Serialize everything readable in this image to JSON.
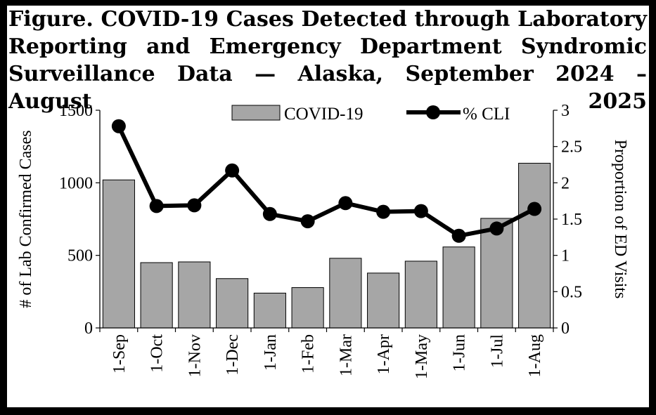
{
  "title_lines": [
    "Figure. COVID-19 Cases Detected through Laboratory",
    "Reporting and Emergency Department Syndromic",
    "Surveillance Data — Alaska, September 2024 – August 2025"
  ],
  "chart_data": {
    "type": "bar",
    "categories": [
      "1-Sep",
      "1-Oct",
      "1-Nov",
      "1-Dec",
      "1-Jan",
      "1-Feb",
      "1-Mar",
      "1-Apr",
      "1-May",
      "1-Jun",
      "1-Jul",
      "1-Aug"
    ],
    "series": [
      {
        "name": "COVID-19",
        "type": "bar",
        "axis": "left",
        "values": [
          1020,
          450,
          455,
          340,
          240,
          278,
          480,
          378,
          460,
          558,
          755,
          1135
        ]
      },
      {
        "name": "% CLI",
        "type": "line",
        "axis": "right",
        "values": [
          2.78,
          1.68,
          1.69,
          2.17,
          1.57,
          1.47,
          1.72,
          1.6,
          1.61,
          1.27,
          1.37,
          1.64
        ]
      }
    ],
    "ylabel": "# of Lab Confirmed Cases",
    "y2label": "Proportion of ED Visits",
    "ylim": [
      0,
      1500
    ],
    "y2lim": [
      0,
      3
    ],
    "yticks": [
      "0",
      "500",
      "1000",
      "1500"
    ],
    "y2ticks": [
      "0",
      "0.5",
      "1",
      "1.5",
      "2",
      "2.5",
      "3"
    ],
    "legend_position": "top",
    "grid": false,
    "colors": {
      "bar_fill": "#a6a6a6",
      "bar_stroke": "#000000",
      "line": "#000000"
    }
  }
}
